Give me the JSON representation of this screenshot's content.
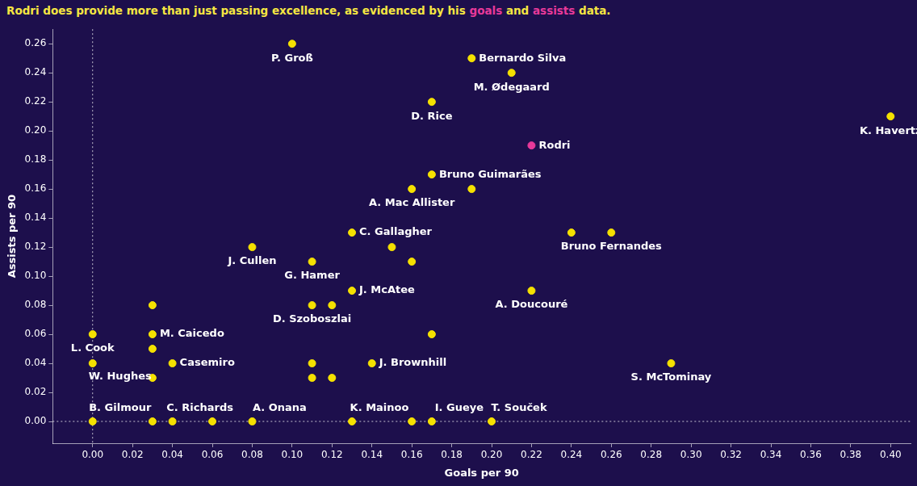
{
  "chart_data": {
    "type": "scatter",
    "title": [
      {
        "text": "Rodri does provide more than just passing excellence, as evidenced by his "
      },
      {
        "text": "goals",
        "color": "#e8399a"
      },
      {
        "text": " and "
      },
      {
        "text": "assists",
        "color": "#e8399a"
      },
      {
        "text": " data."
      }
    ],
    "x_label": "Goals per 90",
    "y_label": "Assists per 90",
    "x": [
      0.1,
      0.19,
      0.21,
      0.17,
      0.4,
      0.22,
      0.17,
      0.16,
      0.19,
      0.13,
      0.15,
      0.16,
      0.24,
      0.26,
      0.08,
      0.11,
      0.13,
      0.22,
      0.11,
      0.12,
      0.03,
      0.03,
      0.0,
      0.03,
      0.04,
      0.0,
      0.03,
      0.17,
      0.11,
      0.11,
      0.12,
      0.14,
      0.29,
      0.0,
      0.03,
      0.04,
      0.06,
      0.08,
      0.13,
      0.16,
      0.17,
      0.2
    ],
    "values": [
      0.26,
      0.25,
      0.24,
      0.22,
      0.21,
      0.19,
      0.17,
      0.16,
      0.16,
      0.13,
      0.12,
      0.11,
      0.13,
      0.13,
      0.12,
      0.11,
      0.09,
      0.09,
      0.08,
      0.08,
      0.08,
      0.06,
      0.06,
      0.05,
      0.04,
      0.04,
      0.03,
      0.06,
      0.04,
      0.03,
      0.03,
      0.04,
      0.04,
      0.0,
      0.0,
      0.0,
      0.0,
      0.0,
      0.0,
      0.0,
      0.0,
      0.0
    ],
    "labels": [
      "P. Groß",
      "Bernardo Silva",
      "M. Ødegaard",
      "D. Rice",
      "K. Havertz",
      "Rodri",
      "Bruno Guimarães",
      "A. Mac Allister",
      null,
      "C. Gallagher",
      null,
      null,
      null,
      "Bruno Fernandes",
      "J. Cullen",
      "G. Hamer",
      "J. McAtee",
      "A. Doucouré",
      "D. Szoboszlai",
      null,
      null,
      "M. Caicedo",
      "L. Cook",
      null,
      "Casemiro",
      "W. Hughes",
      null,
      null,
      null,
      null,
      null,
      "J. Brownhill",
      "S. McTominay",
      "B. Gilmour",
      null,
      "C. Richards",
      null,
      "A. Onana",
      "K. Mainoo",
      null,
      "I. Gueye",
      "T. Souček"
    ],
    "colors": [
      "#f5e100",
      "#f5e100",
      "#f5e100",
      "#f5e100",
      "#f5e100",
      "#e8399a",
      "#f5e100",
      "#f5e100",
      "#f5e100",
      "#f5e100",
      "#f5e100",
      "#f5e100",
      "#f5e100",
      "#f5e100",
      "#f5e100",
      "#f5e100",
      "#f5e100",
      "#f5e100",
      "#f5e100",
      "#f5e100",
      "#f5e100",
      "#f5e100",
      "#f5e100",
      "#f5e100",
      "#f5e100",
      "#f5e100",
      "#f5e100",
      "#f5e100",
      "#f5e100",
      "#f5e100",
      "#f5e100",
      "#f5e100",
      "#f5e100",
      "#f5e100",
      "#f5e100",
      "#f5e100",
      "#f5e100",
      "#f5e100",
      "#f5e100",
      "#f5e100",
      "#f5e100",
      "#f5e100"
    ],
    "xlim": [
      -0.02,
      0.41
    ],
    "ylim": [
      -0.015,
      0.27
    ],
    "xticks": [
      {
        "value": 0,
        "label": "0.00"
      },
      {
        "value": 0.02,
        "label": "0.02"
      },
      {
        "value": 0.04,
        "label": "0.04"
      },
      {
        "value": 0.06,
        "label": "0.06"
      },
      {
        "value": 0.08,
        "label": "0.08"
      },
      {
        "value": 0.1,
        "label": "0.10"
      },
      {
        "value": 0.12,
        "label": "0.12"
      },
      {
        "value": 0.14,
        "label": "0.14"
      },
      {
        "value": 0.16,
        "label": "0.16"
      },
      {
        "value": 0.18,
        "label": "0.18"
      },
      {
        "value": 0.2,
        "label": "0.20"
      },
      {
        "value": 0.22,
        "label": "0.22"
      },
      {
        "value": 0.24,
        "label": "0.24"
      },
      {
        "value": 0.26,
        "label": "0.26"
      },
      {
        "value": 0.28,
        "label": "0.28"
      },
      {
        "value": 0.3,
        "label": "0.30"
      },
      {
        "value": 0.32,
        "label": "0.32"
      },
      {
        "value": 0.34,
        "label": "0.34"
      },
      {
        "value": 0.36,
        "label": "0.36"
      },
      {
        "value": 0.38,
        "label": "0.38"
      },
      {
        "value": 0.4,
        "label": "0.40"
      }
    ],
    "yticks": [
      {
        "value": 0,
        "label": "0.00"
      },
      {
        "value": 0.02,
        "label": "0.02"
      },
      {
        "value": 0.04,
        "label": "0.04"
      },
      {
        "value": 0.06,
        "label": "0.06"
      },
      {
        "value": 0.08,
        "label": "0.08"
      },
      {
        "value": 0.1,
        "label": "0.10"
      },
      {
        "value": 0.12,
        "label": "0.12"
      },
      {
        "value": 0.14,
        "label": "0.14"
      },
      {
        "value": 0.16,
        "label": "0.16"
      },
      {
        "value": 0.18,
        "label": "0.18"
      },
      {
        "value": 0.2,
        "label": "0.20"
      },
      {
        "value": 0.22,
        "label": "0.22"
      },
      {
        "value": 0.24,
        "label": "0.24"
      },
      {
        "value": 0.26,
        "label": "0.26"
      }
    ]
  }
}
